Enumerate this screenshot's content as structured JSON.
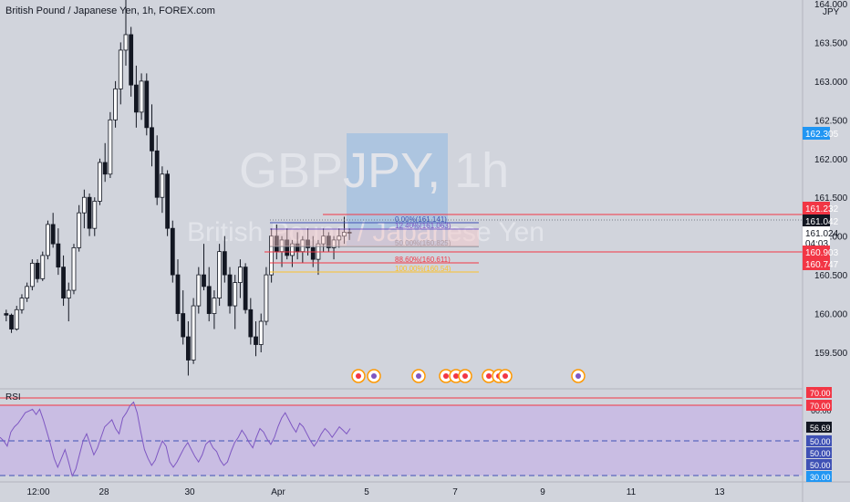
{
  "symbol_title": "British Pound / Japanese Yen, 1h, FOREX.com",
  "watermark": {
    "line1_a": "GBP",
    "line1_b": "JPY",
    "line1_c": ", 1h",
    "line2": "British Pound / Japanese Yen"
  },
  "currency": "JPY",
  "price_axis": {
    "ticks": [
      "164.000",
      "163.500",
      "163.000",
      "162.500",
      "162.000",
      "161.500",
      "161.000",
      "160.500",
      "160.000",
      "159.500"
    ]
  },
  "price_labels": {
    "high_line": "161.232",
    "last": "161.042",
    "bid": "161.024",
    "countdown": "04:03",
    "line_a": "160.903",
    "line_b": "160.747",
    "fib_top": "162.305"
  },
  "fib_levels": [
    {
      "text": "0.00%(161.141)"
    },
    {
      "text": "12.40%(161.063)"
    },
    {
      "text": "50.00%(160.825)"
    },
    {
      "text": "88.60%(160.611)"
    },
    {
      "text": "100.00%(160.54)"
    }
  ],
  "rsi": {
    "label": "RSI",
    "value": "56.69",
    "levels": [
      "70.00",
      "70.00",
      "50.00",
      "50.00",
      "50.00",
      "30.00"
    ],
    "tick_60": "60.00",
    "series": [
      52,
      50,
      47,
      55,
      58,
      60,
      63,
      66,
      67,
      68,
      65,
      68,
      62,
      55,
      48,
      40,
      35,
      40,
      45,
      38,
      30,
      34,
      42,
      50,
      54,
      48,
      42,
      46,
      52,
      58,
      60,
      62,
      57,
      54,
      63,
      66,
      70,
      72,
      66,
      55,
      45,
      40,
      36,
      39,
      45,
      50,
      47,
      38,
      35,
      38,
      42,
      46,
      49,
      45,
      41,
      38,
      42,
      48,
      50,
      46,
      44,
      39,
      36,
      38,
      44,
      49,
      52,
      56,
      53,
      49,
      46,
      52,
      57,
      55,
      51,
      48,
      52,
      58,
      63,
      66,
      62,
      58,
      55,
      60,
      58,
      54,
      50,
      47,
      50,
      54,
      57,
      55,
      52,
      55,
      58,
      56,
      54,
      57
    ]
  },
  "time_axis": [
    "12:00",
    "28",
    "30",
    "Apr",
    "5",
    "7",
    "9",
    "11",
    "13"
  ],
  "colors": {
    "background": "#d1d4dc",
    "candle": "#131722",
    "red_line": "#f23645",
    "blue_badge": "#2196f3",
    "rsi_band": "#c9bde3",
    "rsi_line": "#7e57c2",
    "watermark_box": "#a9c3e0"
  },
  "candles": [
    [
      160.0,
      160.05,
      159.9,
      159.98
    ],
    [
      159.98,
      160.0,
      159.75,
      159.8
    ],
    [
      159.8,
      160.1,
      159.78,
      160.05
    ],
    [
      160.05,
      160.25,
      160.0,
      160.2
    ],
    [
      160.2,
      160.4,
      160.15,
      160.35
    ],
    [
      160.35,
      160.7,
      160.3,
      160.65
    ],
    [
      160.65,
      160.7,
      160.4,
      160.45
    ],
    [
      160.45,
      160.8,
      160.42,
      160.75
    ],
    [
      160.75,
      161.2,
      160.7,
      161.15
    ],
    [
      161.15,
      161.3,
      160.85,
      160.9
    ],
    [
      160.9,
      161.1,
      160.5,
      160.6
    ],
    [
      160.6,
      160.75,
      160.1,
      160.2
    ],
    [
      160.2,
      160.4,
      159.9,
      160.3
    ],
    [
      160.3,
      160.9,
      160.25,
      160.85
    ],
    [
      160.85,
      161.4,
      160.8,
      161.3
    ],
    [
      161.3,
      161.6,
      161.1,
      161.5
    ],
    [
      161.5,
      161.55,
      161.0,
      161.1
    ],
    [
      161.1,
      161.5,
      161.0,
      161.45
    ],
    [
      161.45,
      162.0,
      161.4,
      161.95
    ],
    [
      161.95,
      162.2,
      161.7,
      161.8
    ],
    [
      161.8,
      162.6,
      161.75,
      162.5
    ],
    [
      162.5,
      163.0,
      162.4,
      162.9
    ],
    [
      162.9,
      163.5,
      162.7,
      163.4
    ],
    [
      163.4,
      164.1,
      163.2,
      163.6
    ],
    [
      163.6,
      163.7,
      162.8,
      162.95
    ],
    [
      162.95,
      163.2,
      162.4,
      162.6
    ],
    [
      162.6,
      163.1,
      162.5,
      163.0
    ],
    [
      163.0,
      163.1,
      162.3,
      162.4
    ],
    [
      162.4,
      162.7,
      161.9,
      162.1
    ],
    [
      162.1,
      162.3,
      161.4,
      161.5
    ],
    [
      161.5,
      161.9,
      161.3,
      161.8
    ],
    [
      161.8,
      161.85,
      161.0,
      161.1
    ],
    [
      161.1,
      161.2,
      160.4,
      160.5
    ],
    [
      160.5,
      160.7,
      159.9,
      160.0
    ],
    [
      160.0,
      160.3,
      159.6,
      159.7
    ],
    [
      159.7,
      159.9,
      159.2,
      159.4
    ],
    [
      159.4,
      160.2,
      159.35,
      160.1
    ],
    [
      160.1,
      160.6,
      160.0,
      160.5
    ],
    [
      160.5,
      160.9,
      160.3,
      160.35
    ],
    [
      160.35,
      160.6,
      159.9,
      160.0
    ],
    [
      160.0,
      160.3,
      159.8,
      160.2
    ],
    [
      160.2,
      160.9,
      160.1,
      160.8
    ],
    [
      160.8,
      161.0,
      160.4,
      160.5
    ],
    [
      160.5,
      160.6,
      160.0,
      160.1
    ],
    [
      160.1,
      160.5,
      159.8,
      160.4
    ],
    [
      160.4,
      160.7,
      160.2,
      160.6
    ],
    [
      160.6,
      160.65,
      160.0,
      160.05
    ],
    [
      160.05,
      160.2,
      159.6,
      159.7
    ],
    [
      159.7,
      159.9,
      159.45,
      159.6
    ],
    [
      159.6,
      160.0,
      159.5,
      159.9
    ],
    [
      159.9,
      160.6,
      159.85,
      160.5
    ],
    [
      160.5,
      161.1,
      160.4,
      161.0
    ],
    [
      161.0,
      161.15,
      160.7,
      160.8
    ],
    [
      160.8,
      161.0,
      160.6,
      160.95
    ],
    [
      160.95,
      161.1,
      160.7,
      160.75
    ],
    [
      160.75,
      160.95,
      160.6,
      160.9
    ],
    [
      160.9,
      161.05,
      160.7,
      160.8
    ],
    [
      160.8,
      161.0,
      160.65,
      160.95
    ],
    [
      160.95,
      161.1,
      160.75,
      160.85
    ],
    [
      160.85,
      161.0,
      160.6,
      160.7
    ],
    [
      160.7,
      160.95,
      160.5,
      160.9
    ],
    [
      160.9,
      161.1,
      160.8,
      161.0
    ],
    [
      161.0,
      161.05,
      160.8,
      160.85
    ],
    [
      160.85,
      161.0,
      160.7,
      160.95
    ],
    [
      160.95,
      161.1,
      160.85,
      161.0
    ],
    [
      161.0,
      161.25,
      160.9,
      161.05
    ],
    [
      161.05,
      161.1,
      160.95,
      161.04
    ]
  ]
}
